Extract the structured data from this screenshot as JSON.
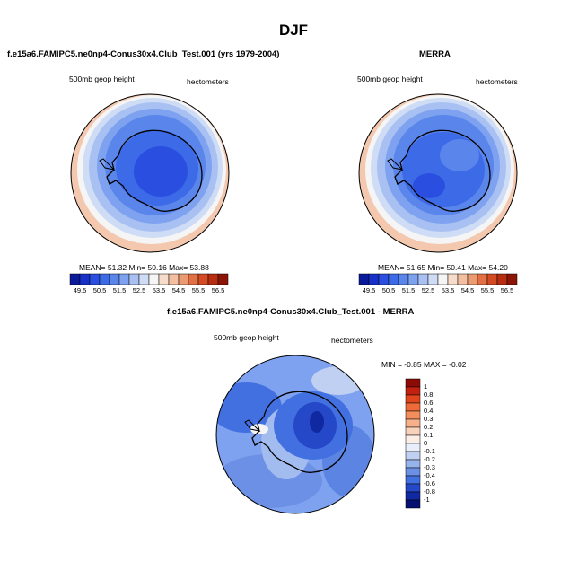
{
  "figure": {
    "season": "DJF"
  },
  "panels": [
    {
      "id": "model",
      "title": "f.e15a6.FAMIPC5.ne0np4-Conus30x4.Club_Test.001 (yrs 1979-2004)",
      "left_label": "500mb geop height",
      "right_label": "hectometers",
      "stats": "MEAN= 51.32  Min= 50.16  Max= 53.88"
    },
    {
      "id": "obs",
      "title": "MERRA",
      "left_label": "500mb geop height",
      "right_label": "hectometers",
      "stats": "MEAN= 51.65  Min= 50.41  Max= 54.20"
    },
    {
      "id": "diff",
      "title": "f.e15a6.FAMIPC5.ne0np4-Conus30x4.Club_Test.001 - MERRA",
      "left_label": "500mb geop height",
      "right_label": "hectometers",
      "stats": "MIN = -0.85 MAX = -0.02"
    }
  ],
  "abs_colorbar": {
    "labels": [
      "49.5",
      "50.5",
      "51.5",
      "52.5",
      "53.5",
      "54.5",
      "55.5",
      "56.5"
    ],
    "colors": [
      "#0a1a9a",
      "#1630c8",
      "#2a4fe0",
      "#3d6be8",
      "#5a86ec",
      "#7ea2ef",
      "#a9c1f2",
      "#cfdcf5",
      "#f5f5f5",
      "#f8dccb",
      "#f3bfa0",
      "#ec9a72",
      "#e37044",
      "#d44a22",
      "#b82c10",
      "#8c1505"
    ]
  },
  "diff_colorbar": {
    "labels": [
      "1",
      "0.8",
      "0.6",
      "0.4",
      "0.3",
      "0.2",
      "0.1",
      "0",
      "-0.1",
      "-0.2",
      "-0.3",
      "-0.4",
      "-0.6",
      "-0.8",
      "-1"
    ],
    "colors": [
      "#8c0b05",
      "#c22010",
      "#e0451c",
      "#ee6a38",
      "#f38e5c",
      "#f6b08a",
      "#f9d2bc",
      "#fbeee6",
      "#e8eefa",
      "#bfd0f2",
      "#97b3ec",
      "#6b90e6",
      "#4270e0",
      "#2448c8",
      "#1028a0",
      "#051070"
    ]
  }
}
